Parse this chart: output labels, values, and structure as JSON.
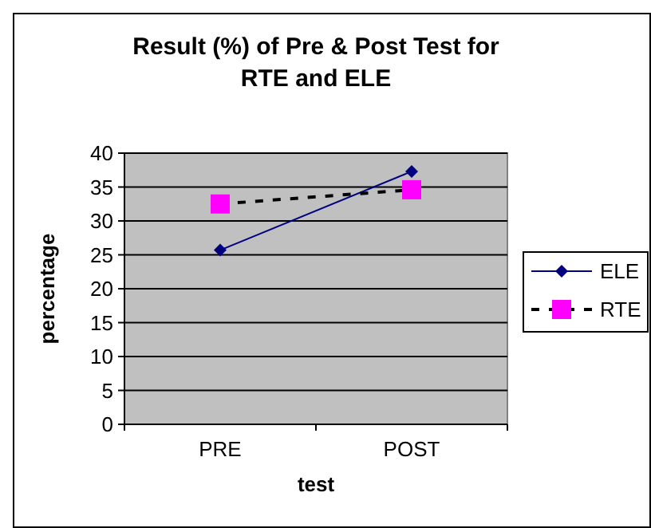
{
  "chart_data": {
    "type": "line",
    "title": "Result (%) of Pre & Post Test for RTE and ELE",
    "xlabel": "test",
    "ylabel": "percentage",
    "categories": [
      "PRE",
      "POST"
    ],
    "series": [
      {
        "name": "ELE",
        "color": "#000080",
        "values": [
          25.7,
          37.3
        ],
        "marker": "diamond",
        "line_style": "solid"
      },
      {
        "name": "RTE",
        "color": "#ff00ff",
        "values": [
          32.5,
          34.6
        ],
        "marker": "square",
        "line_style": "dashed"
      }
    ],
    "ylim": [
      0,
      40
    ],
    "yticks": [
      0,
      5,
      10,
      15,
      20,
      25,
      30,
      35,
      40
    ],
    "grid": "y",
    "legend": "right"
  }
}
